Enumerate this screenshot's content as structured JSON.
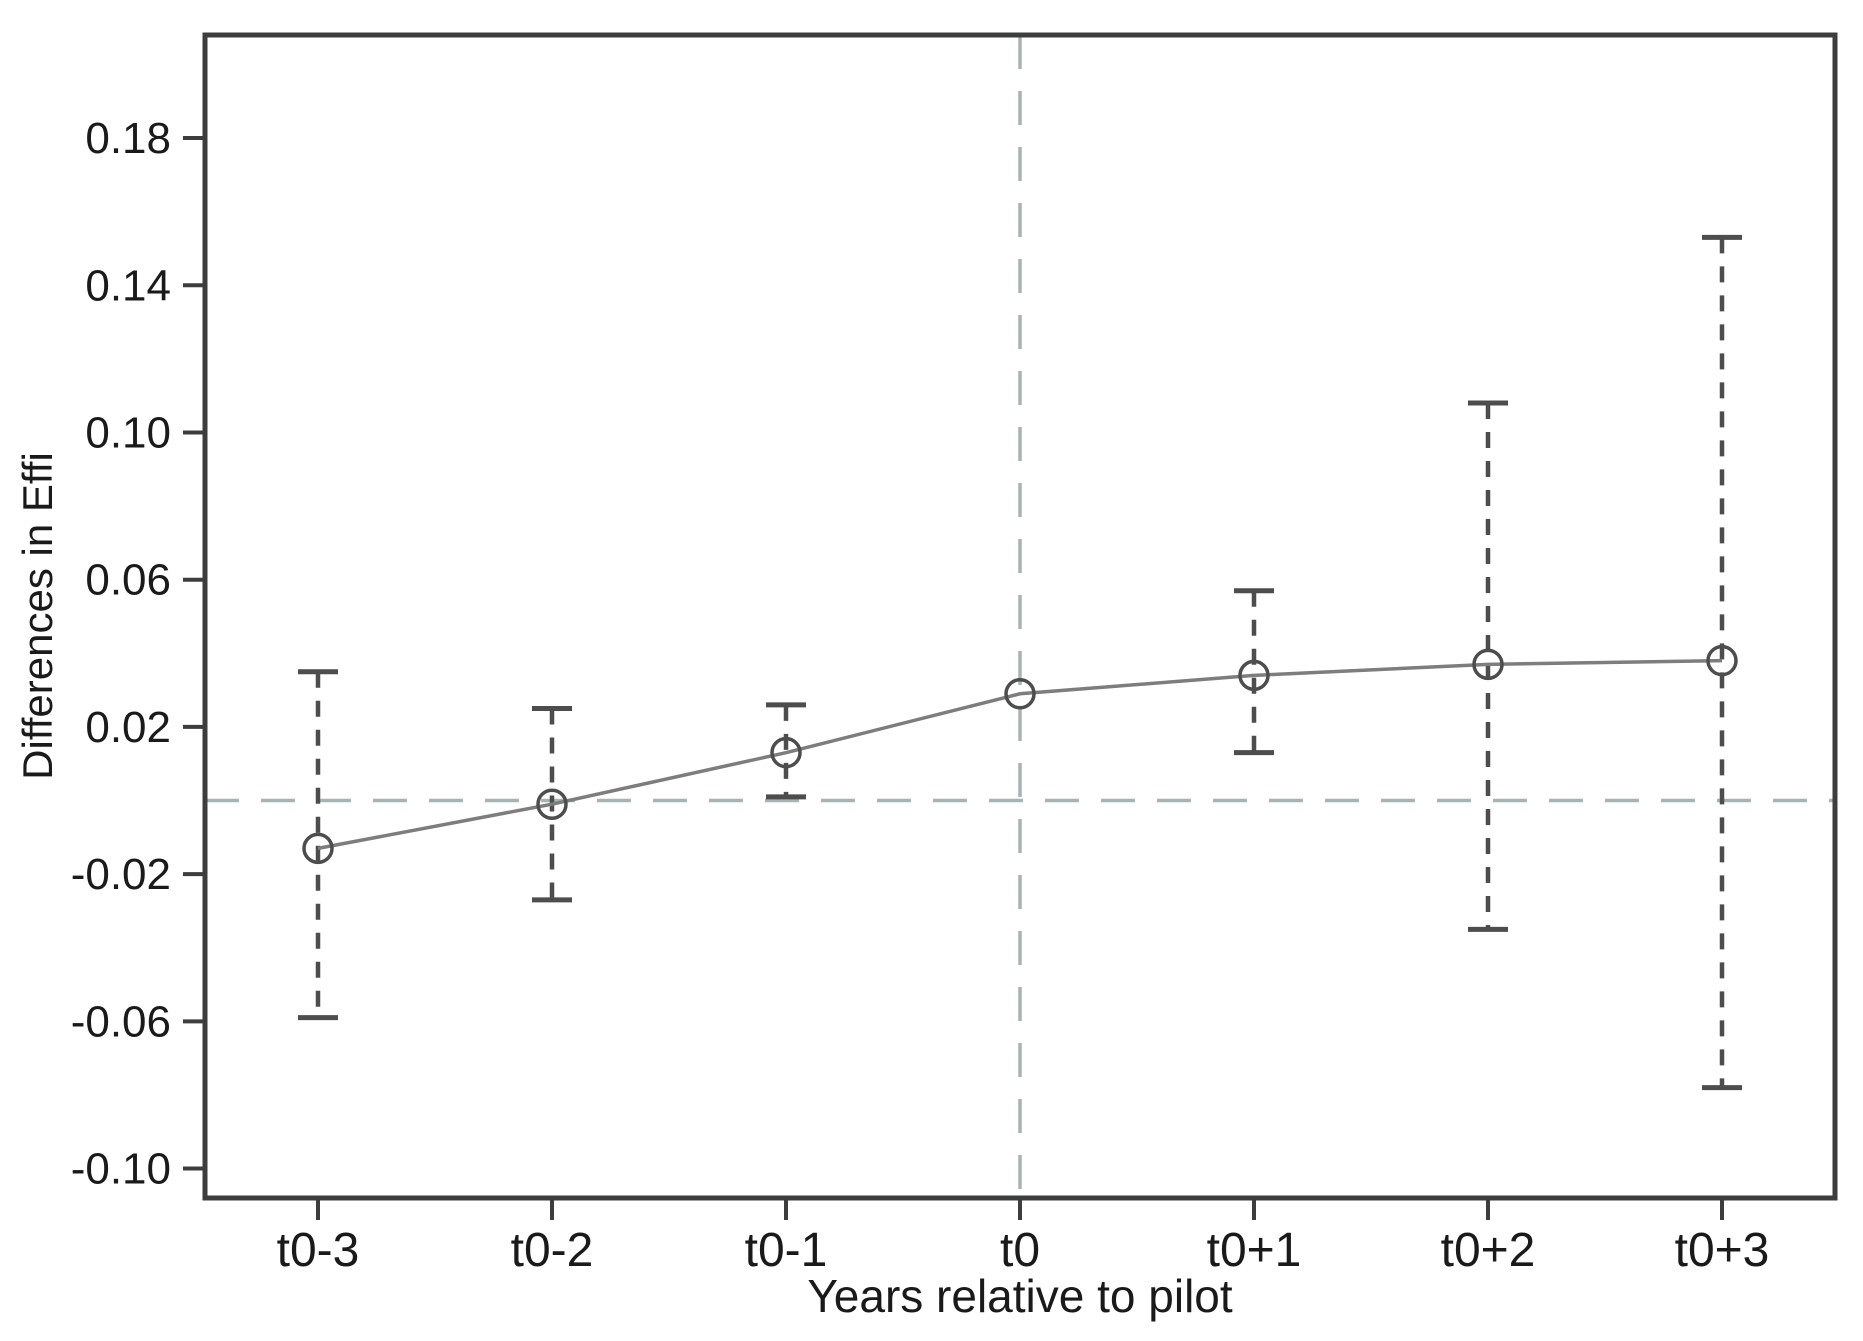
{
  "chart_data": {
    "type": "line",
    "subtype": "event-study point estimates with dashed confidence-interval error bars",
    "title": "",
    "xlabel": "Years relative to pilot",
    "ylabel": "Differences in Effi",
    "categories": [
      "t0-3",
      "t0-2",
      "t0-1",
      "t0",
      "t0+1",
      "t0+2",
      "t0+3"
    ],
    "series": [
      {
        "name": "Differences in Effi",
        "values": [
          -0.013,
          -0.001,
          0.013,
          0.029,
          0.034,
          0.037,
          0.038
        ],
        "ci_lower": [
          -0.059,
          -0.027,
          0.001,
          null,
          0.013,
          -0.035,
          -0.078
        ],
        "ci_upper": [
          0.035,
          0.025,
          0.026,
          null,
          0.057,
          0.108,
          0.153
        ]
      }
    ],
    "y_ticks": [
      0.18,
      0.14,
      0.1,
      0.06,
      0.02,
      -0.02,
      -0.06,
      -0.1
    ],
    "y_tick_labels": [
      "0.18",
      "0.14",
      "0.10",
      "0.06",
      "0.02",
      "-0.02",
      "-0.06",
      "-0.10"
    ],
    "ylim": [
      -0.108,
      0.208
    ],
    "reference_lines": {
      "horizontal_y": 0,
      "vertical_x_category": "t0"
    },
    "grid": false,
    "legend": false,
    "marker": "hollow-circle",
    "colors": {
      "background": "#ffffff",
      "axis": "#3d3d3d",
      "text": "#1a1a1a",
      "trend_line": "#7d7d7d",
      "marker": "#4d4d4d",
      "error_bar": "#4d4d4d",
      "reference_line": "#a7b4b2"
    }
  }
}
